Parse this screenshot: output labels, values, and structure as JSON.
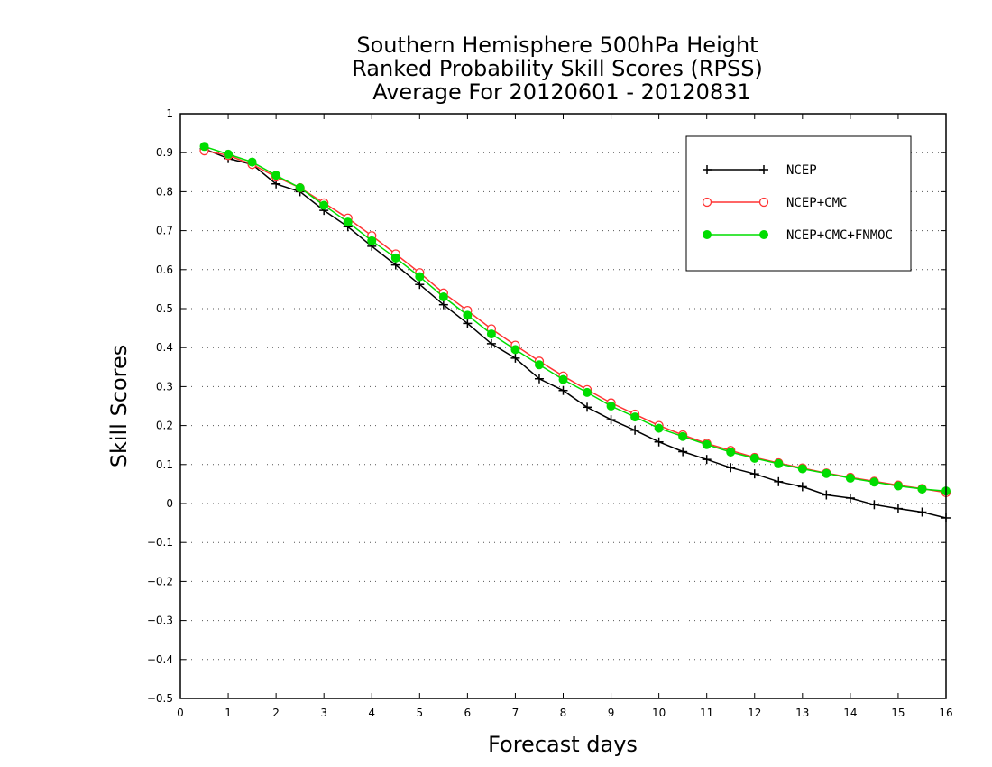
{
  "chart_data": {
    "type": "line",
    "title": [
      "Southern Hemisphere 500hPa Height",
      "Ranked Probability Skill Scores (RPSS)",
      "Average For 20120601 - 20120831"
    ],
    "xlabel": "Forecast days",
    "ylabel": "Skill Scores",
    "xlim": [
      0,
      16
    ],
    "ylim": [
      -0.5,
      1
    ],
    "x_ticks": [
      "0",
      "1",
      "2",
      "3",
      "4",
      "5",
      "6",
      "7",
      "8",
      "9",
      "10",
      "11",
      "12",
      "13",
      "14",
      "15",
      "16"
    ],
    "y_ticks": [
      "−0.5",
      "−0.4",
      "−0.3",
      "−0.2",
      "−0.1",
      "0",
      "0.1",
      "0.2",
      "0.3",
      "0.4",
      "0.5",
      "0.6",
      "0.7",
      "0.8",
      "0.9",
      "1"
    ],
    "grid": "horizontal-dotted",
    "legend_position": "top-right",
    "x": [
      0.5,
      1,
      1.5,
      2,
      2.5,
      3,
      3.5,
      4,
      4.5,
      5,
      5.5,
      6,
      6.5,
      7,
      7.5,
      8,
      8.5,
      9,
      9.5,
      10,
      10.5,
      11,
      11.5,
      12,
      12.5,
      13,
      13.5,
      14,
      14.5,
      15,
      15.5,
      16
    ],
    "series": [
      {
        "name": "NCEP",
        "color": "#000000",
        "marker": "plus",
        "values": [
          0.91,
          0.885,
          0.87,
          0.82,
          0.8,
          0.752,
          0.71,
          0.66,
          0.612,
          0.562,
          0.51,
          0.462,
          0.41,
          0.373,
          0.32,
          0.29,
          0.247,
          0.215,
          0.188,
          0.158,
          0.133,
          0.113,
          0.092,
          0.076,
          0.056,
          0.043,
          0.022,
          0.014,
          -0.003,
          -0.013,
          -0.022,
          -0.037
        ]
      },
      {
        "name": "NCEP+CMC",
        "color": "#ff3333",
        "marker": "open-circle",
        "values": [
          0.905,
          0.893,
          0.87,
          0.838,
          0.81,
          0.771,
          0.732,
          0.687,
          0.64,
          0.592,
          0.54,
          0.495,
          0.448,
          0.406,
          0.365,
          0.327,
          0.292,
          0.258,
          0.229,
          0.2,
          0.176,
          0.154,
          0.136,
          0.118,
          0.104,
          0.091,
          0.078,
          0.067,
          0.057,
          0.047,
          0.038,
          0.028
        ]
      },
      {
        "name": "NCEP+CMC+FNMOC",
        "color": "#00dd00",
        "marker": "filled-circle",
        "values": [
          0.916,
          0.896,
          0.876,
          0.842,
          0.81,
          0.765,
          0.722,
          0.674,
          0.63,
          0.582,
          0.53,
          0.483,
          0.435,
          0.395,
          0.356,
          0.318,
          0.285,
          0.25,
          0.222,
          0.193,
          0.172,
          0.151,
          0.132,
          0.116,
          0.102,
          0.089,
          0.077,
          0.065,
          0.055,
          0.045,
          0.037,
          0.032
        ]
      }
    ]
  }
}
